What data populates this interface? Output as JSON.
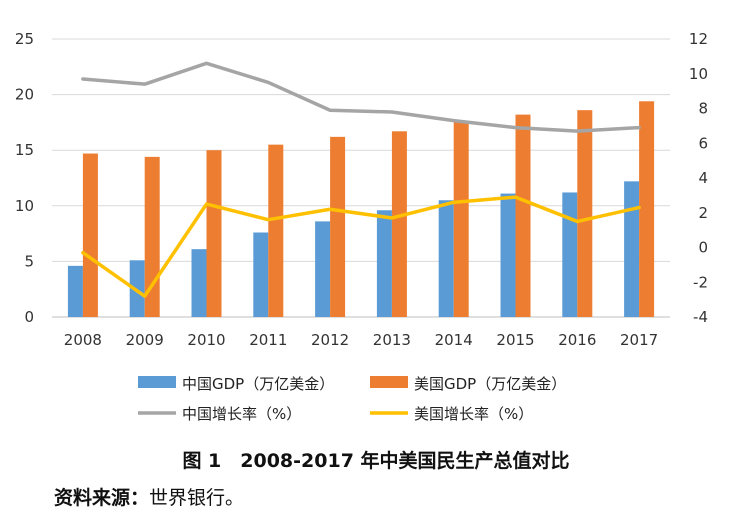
{
  "chart_data": {
    "type": "bar",
    "categories": [
      "2008",
      "2009",
      "2010",
      "2011",
      "2012",
      "2013",
      "2014",
      "2015",
      "2016",
      "2017"
    ],
    "series": [
      {
        "name": "中国GDP（万亿美金）",
        "kind": "bar",
        "axis": "left",
        "color": "#5b9bd5",
        "values": [
          4.6,
          5.1,
          6.1,
          7.6,
          8.6,
          9.6,
          10.5,
          11.1,
          11.2,
          12.2
        ]
      },
      {
        "name": "美国GDP（万亿美金）",
        "kind": "bar",
        "axis": "left",
        "color": "#ed7d31",
        "values": [
          14.7,
          14.4,
          15.0,
          15.5,
          16.2,
          16.7,
          17.5,
          18.2,
          18.6,
          19.4
        ]
      },
      {
        "name": "中国增长率（%）",
        "kind": "line",
        "axis": "right",
        "color": "#a5a5a5",
        "values": [
          9.7,
          9.4,
          10.6,
          9.5,
          7.9,
          7.8,
          7.3,
          6.9,
          6.7,
          6.9
        ]
      },
      {
        "name": "美国增长率（%）",
        "kind": "line",
        "axis": "right",
        "color": "#ffc000",
        "values": [
          -0.3,
          -2.8,
          2.5,
          1.6,
          2.2,
          1.7,
          2.6,
          2.9,
          1.5,
          2.3
        ]
      }
    ],
    "y_left": {
      "min": 0,
      "max": 25,
      "ticks": [
        0,
        5,
        10,
        15,
        20,
        25
      ]
    },
    "y_right": {
      "min": -4,
      "max": 12,
      "ticks": [
        -4,
        -2,
        0,
        2,
        4,
        6,
        8,
        10,
        12
      ]
    },
    "grid": true,
    "legend_position": "bottom"
  },
  "caption": "图 1　2008-2017 年中美国民生产总值对比",
  "source_label": "资料来源：",
  "source_text": "世界银行。"
}
